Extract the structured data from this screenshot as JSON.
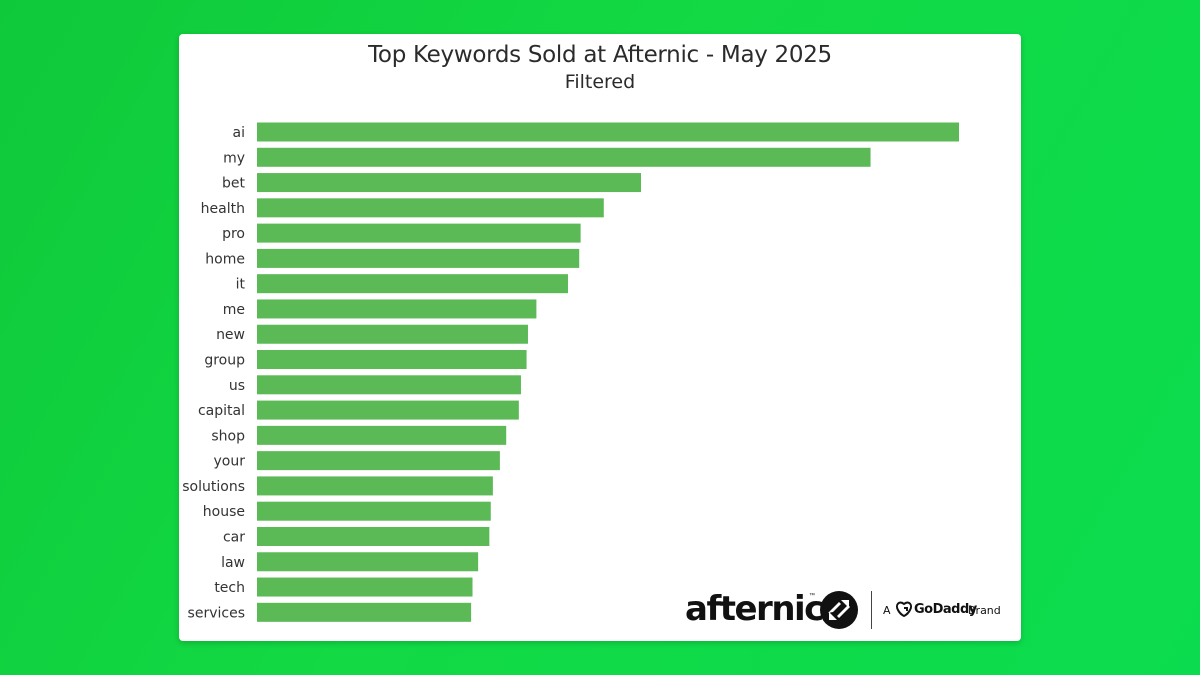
{
  "chart_data": {
    "type": "bar",
    "orientation": "horizontal",
    "title": "Top Keywords Sold at Afternic - May 2025",
    "subtitle": "Filtered",
    "xlabel": "",
    "ylabel": "",
    "grid": false,
    "categories": [
      "ai",
      "my",
      "bet",
      "health",
      "pro",
      "home",
      "it",
      "me",
      "new",
      "group",
      "us",
      "capital",
      "shop",
      "your",
      "solutions",
      "house",
      "car",
      "law",
      "tech",
      "services"
    ],
    "values": [
      100,
      87.4,
      54.7,
      49.4,
      46.1,
      45.9,
      44.3,
      39.8,
      38.6,
      38.4,
      37.6,
      37.3,
      35.5,
      34.6,
      33.6,
      33.3,
      33.1,
      31.5,
      30.7,
      30.5
    ],
    "xlim": [
      0,
      100
    ],
    "bar_color": "#5bb956"
  },
  "brand": {
    "name": "afternic",
    "tm": "™",
    "prefix": "A",
    "parent": "GoDaddy",
    "suffix": "Brand"
  },
  "colors": {
    "background": "#12d944",
    "card": "#ffffff"
  }
}
